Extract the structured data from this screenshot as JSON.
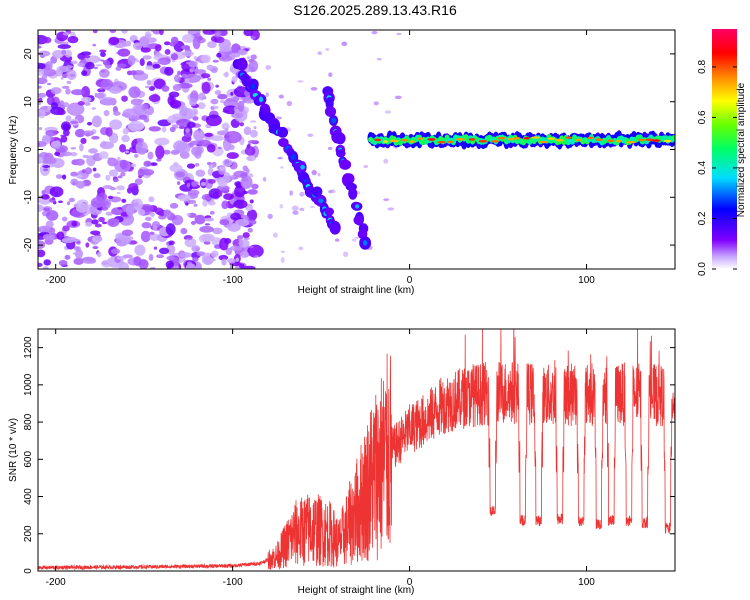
{
  "title": "S126.2025.289.13.43.R16",
  "chart_data": [
    {
      "type": "heatmap",
      "name": "spectrogram",
      "xlabel": "Height of straight line (km)",
      "ylabel": "Frequency (Hz)",
      "xlim": [
        -210,
        150
      ],
      "ylim": [
        -25,
        25
      ],
      "xticks": [
        -200,
        -100,
        0,
        100
      ],
      "yticks": [
        -20,
        -10,
        0,
        10,
        20
      ],
      "colorbar": {
        "label": "Normalized spectral amplitude",
        "range": [
          0.0,
          0.95
        ],
        "ticks": [
          0.0,
          0.2,
          0.4,
          0.6,
          0.8
        ],
        "tick_labels": [
          "0.0",
          "0.2",
          "0.4",
          "0.6",
          "0.8"
        ]
      },
      "features": {
        "noise_region_x": [
          -210,
          -95
        ],
        "steep_streak": {
          "x": [
            -97,
            -42
          ],
          "y": [
            18,
            -16
          ]
        },
        "second_streak": {
          "x": [
            -47,
            -25
          ],
          "y": [
            12,
            -20
          ]
        },
        "carrier_line": {
          "x": [
            -22,
            150
          ],
          "y_mean": 2,
          "amplitude": 0.9
        }
      }
    },
    {
      "type": "line",
      "name": "snr",
      "xlabel": "Height of straight line (km)",
      "ylabel": "SNR (10 * v/v)",
      "xlim": [
        -210,
        150
      ],
      "ylim": [
        0,
        1300
      ],
      "xticks": [
        -200,
        -100,
        0,
        100
      ],
      "yticks": [
        0,
        200,
        400,
        600,
        800,
        1000,
        1200
      ],
      "color": "#ee3333",
      "profile": {
        "x": [
          -210,
          -150,
          -100,
          -85,
          -75,
          -65,
          -55,
          -45,
          -40,
          -30,
          -20,
          -10,
          0,
          10,
          20,
          30,
          40,
          50,
          60,
          80,
          100,
          120,
          150
        ],
        "y": [
          18,
          22,
          28,
          40,
          80,
          200,
          230,
          200,
          150,
          320,
          520,
          650,
          760,
          820,
          900,
          930,
          950,
          960,
          960,
          940,
          950,
          950,
          940
        ]
      },
      "dropouts": [
        {
          "x": 47,
          "y": 320
        },
        {
          "x": 64,
          "y": 270
        },
        {
          "x": 73,
          "y": 270
        },
        {
          "x": 85,
          "y": 280
        },
        {
          "x": 97,
          "y": 270
        },
        {
          "x": 107,
          "y": 250
        },
        {
          "x": 114,
          "y": 270
        },
        {
          "x": 124,
          "y": 270
        },
        {
          "x": 133,
          "y": 260
        },
        {
          "x": 146,
          "y": 230
        }
      ]
    }
  ]
}
